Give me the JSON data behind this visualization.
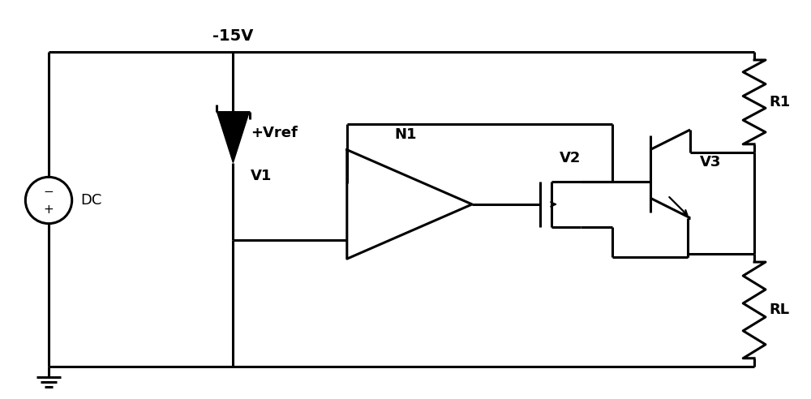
{
  "bg_color": "#ffffff",
  "line_color": "#000000",
  "line_width": 2.2,
  "font_size": 13,
  "components": {
    "voltage_label": "-15V",
    "dc_label": "DC",
    "vref_label": "+Vref",
    "v1_label": "V1",
    "n1_label": "N1",
    "v2_label": "V2",
    "v3_label": "V3",
    "r1_label": "R1",
    "rl_label": "RL"
  }
}
